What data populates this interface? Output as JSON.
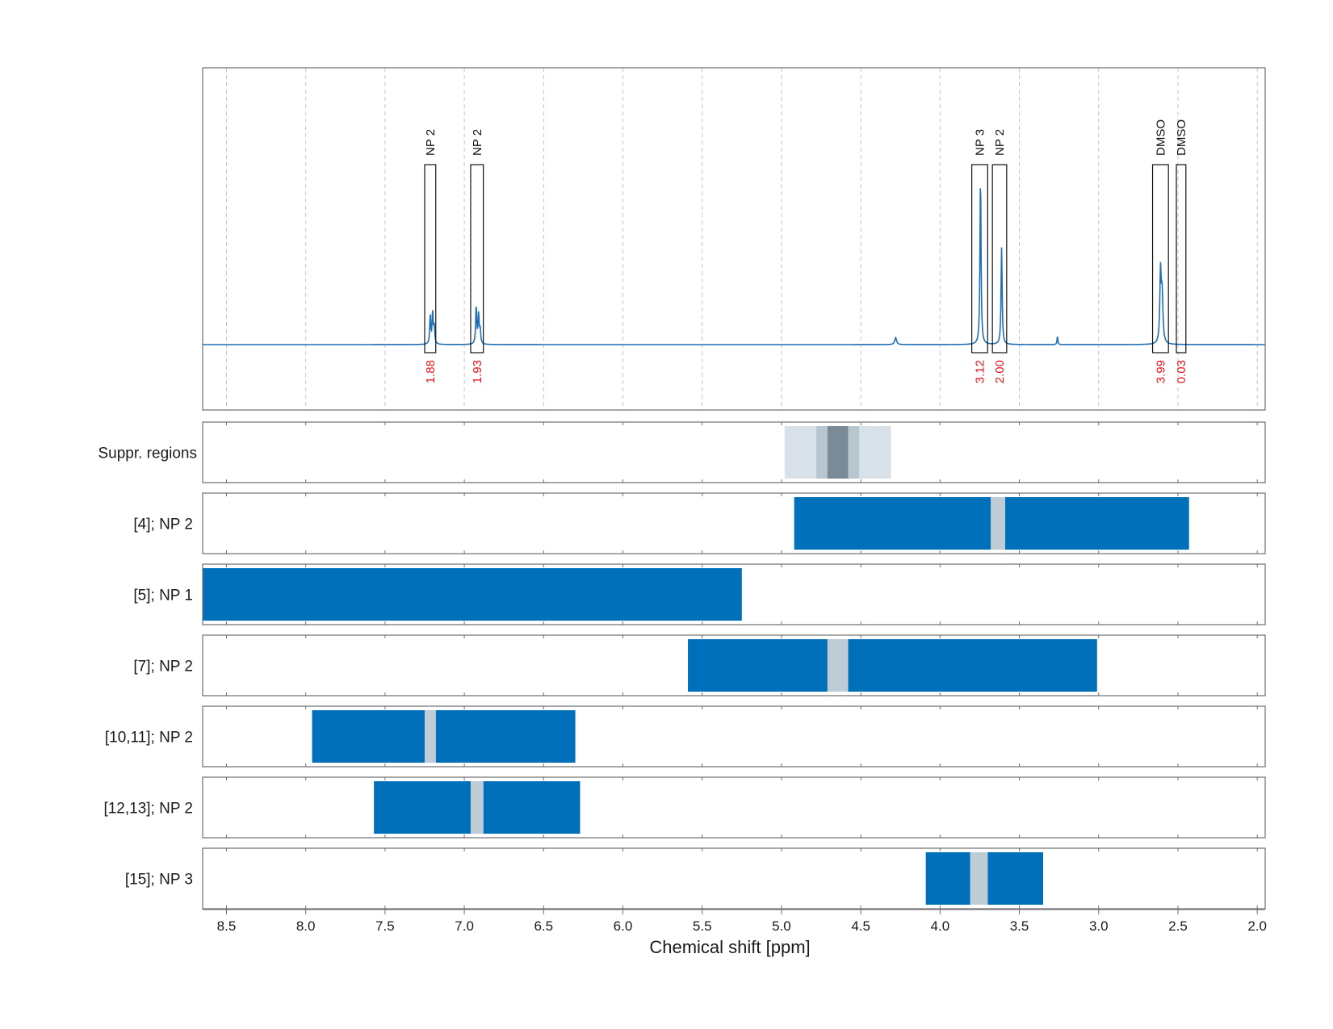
{
  "chart_data": {
    "type": "nmr-spectrum-with-region-tracks",
    "xlabel": "Chemical shift [ppm]",
    "xlim": [
      8.65,
      1.95
    ],
    "x_ticks": [
      "8.5",
      "8.0",
      "7.5",
      "7.0",
      "6.5",
      "6.0",
      "5.5",
      "5.0",
      "4.5",
      "4.0",
      "3.5",
      "3.0",
      "2.5",
      "2.0"
    ],
    "x_tick_values": [
      8.5,
      8.0,
      7.5,
      7.0,
      6.5,
      6.0,
      5.5,
      5.0,
      4.5,
      4.0,
      3.5,
      3.0,
      2.5,
      2.0
    ],
    "spectrum": {
      "baseline": 0,
      "y_max": 1.0,
      "peaks": [
        {
          "ppm": 7.215,
          "height": 0.16,
          "width": 0.004
        },
        {
          "ppm": 7.2,
          "height": 0.18,
          "width": 0.004
        },
        {
          "ppm": 7.19,
          "height": 0.1,
          "width": 0.004
        },
        {
          "ppm": 6.925,
          "height": 0.22,
          "width": 0.004
        },
        {
          "ppm": 6.91,
          "height": 0.17,
          "width": 0.004
        },
        {
          "ppm": 6.9,
          "height": 0.08,
          "width": 0.004
        },
        {
          "ppm": 4.28,
          "height": 0.04,
          "width": 0.007
        },
        {
          "ppm": 3.745,
          "height": 0.97,
          "width": 0.004
        },
        {
          "ppm": 3.612,
          "height": 0.56,
          "width": 0.004
        },
        {
          "ppm": 3.26,
          "height": 0.05,
          "width": 0.003
        },
        {
          "ppm": 2.61,
          "height": 0.4,
          "width": 0.005
        },
        {
          "ppm": 2.6,
          "height": 0.28,
          "width": 0.006
        }
      ],
      "color": "#1f6fb5"
    },
    "annotations": [
      {
        "label": "NP 2",
        "from": 7.25,
        "to": 7.18,
        "integral": "1.88"
      },
      {
        "label": "NP 2",
        "from": 6.96,
        "to": 6.88,
        "integral": "1.93"
      },
      {
        "label": "NP 3",
        "from": 3.8,
        "to": 3.7,
        "integral": "3.12"
      },
      {
        "label": "NP 2",
        "from": 3.67,
        "to": 3.58,
        "integral": "2.00"
      },
      {
        "label": "DMSO",
        "from": 2.66,
        "to": 2.56,
        "integral": "3.99"
      },
      {
        "label": "DMSO",
        "from": 2.51,
        "to": 2.45,
        "integral": "0.03"
      }
    ],
    "suppression": {
      "label": "Suppr. regions",
      "bands": [
        {
          "from": 4.98,
          "to": 4.31,
          "color": "#d8e1e8"
        },
        {
          "from": 4.78,
          "to": 4.51,
          "color": "#b8c6d0"
        },
        {
          "from": 4.71,
          "to": 4.58,
          "color": "#7a8a96"
        }
      ]
    },
    "tracks": [
      {
        "label": "[4]; NP 2",
        "segments": [
          [
            4.92,
            3.68
          ],
          [
            3.59,
            2.43
          ]
        ],
        "gaps": [
          [
            3.68,
            3.59
          ]
        ]
      },
      {
        "label": "[5]; NP 1",
        "segments": [
          [
            8.65,
            5.25
          ]
        ],
        "gaps": []
      },
      {
        "label": "[7]; NP 2",
        "segments": [
          [
            5.59,
            4.71
          ],
          [
            4.58,
            3.01
          ]
        ],
        "gaps": [
          [
            4.71,
            4.58
          ]
        ]
      },
      {
        "label": "[10,11]; NP 2",
        "segments": [
          [
            7.96,
            7.25
          ],
          [
            7.18,
            6.3
          ]
        ],
        "gaps": [
          [
            7.25,
            7.18
          ]
        ]
      },
      {
        "label": "[12,13]; NP 2",
        "segments": [
          [
            7.57,
            6.96
          ],
          [
            6.88,
            6.27
          ]
        ],
        "gaps": [
          [
            6.96,
            6.88
          ]
        ]
      },
      {
        "label": "[15]; NP 3",
        "segments": [
          [
            4.09,
            3.81
          ],
          [
            3.7,
            3.35
          ]
        ],
        "gaps": [
          [
            3.81,
            3.7
          ]
        ]
      }
    ],
    "colors": {
      "track_fill": "#0070ba",
      "gap_fill": "#bfccd4",
      "integral_text": "#e8141c",
      "frame": "#6e6e6e"
    },
    "grid": true
  }
}
